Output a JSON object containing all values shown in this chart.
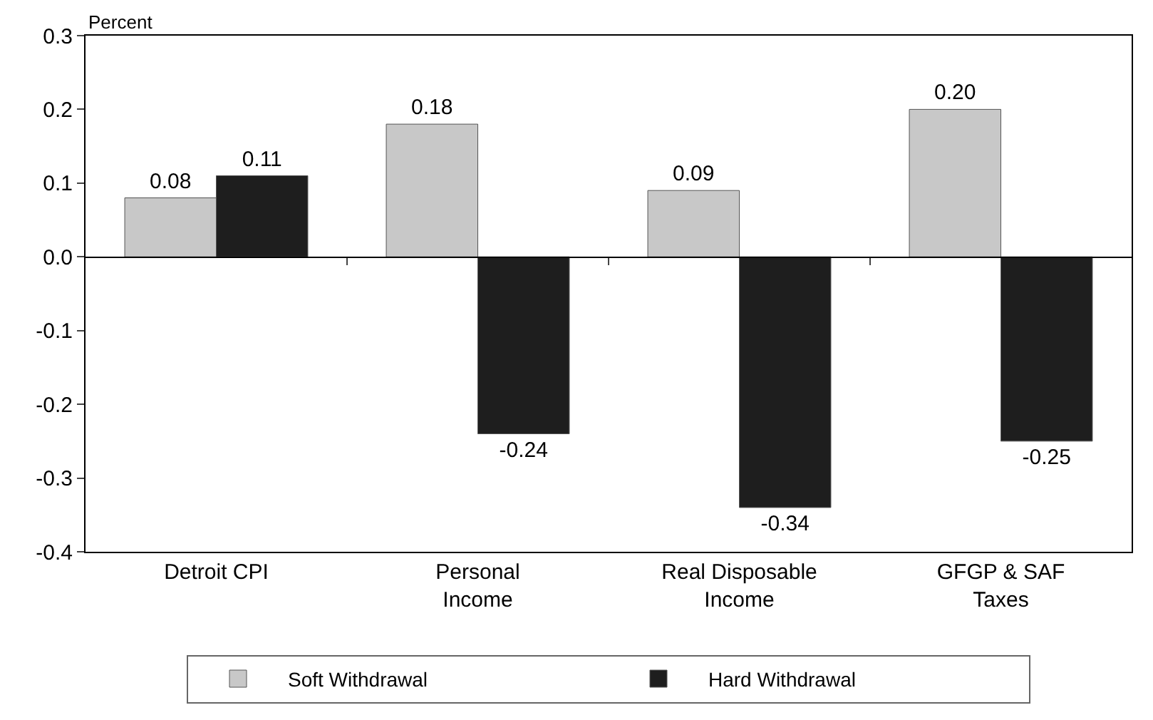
{
  "chart_data": {
    "type": "bar",
    "ylabel": "Percent",
    "categories": [
      "Detroit CPI",
      "Personal\nIncome",
      "Real Disposable\nIncome",
      "GFGP & SAF\nTaxes"
    ],
    "series": [
      {
        "name": "Soft Withdrawal",
        "color": "#c8c8c8",
        "values": [
          0.08,
          0.18,
          0.09,
          0.2
        ],
        "value_labels": [
          "0.08",
          "0.18",
          "0.09",
          "0.20"
        ]
      },
      {
        "name": "Hard Withdrawal",
        "color": "#1e1e1e",
        "values": [
          0.11,
          -0.24,
          -0.34,
          -0.25
        ],
        "value_labels": [
          "0.11",
          "-0.24",
          "-0.34",
          "-0.25"
        ]
      }
    ],
    "ylim": [
      -0.4,
      0.3
    ],
    "yticks": [
      {
        "value": 0.3,
        "label": "0.3"
      },
      {
        "value": 0.2,
        "label": "0.2"
      },
      {
        "value": 0.1,
        "label": "0.1"
      },
      {
        "value": 0,
        "label": "0.0"
      },
      {
        "value": -0.1,
        "label": "-0.1"
      },
      {
        "value": -0.2,
        "label": "-0.2"
      },
      {
        "value": -0.3,
        "label": "-0.3"
      },
      {
        "value": -0.4,
        "label": "-0.4"
      }
    ],
    "legend": "bottom"
  }
}
